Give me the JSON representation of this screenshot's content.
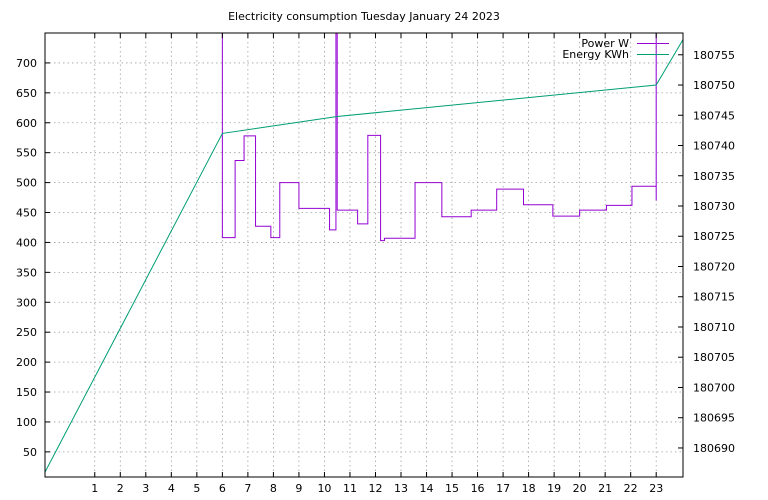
{
  "chart_data": {
    "type": "line",
    "title": "Electricity consumption Tuesday January 24 2023",
    "xlabel": "",
    "ylabel": "",
    "y2label": "",
    "xlim": [
      -0.95,
      24.05
    ],
    "ylim": [
      8,
      750
    ],
    "y2lim": [
      180685.2,
      180758.6
    ],
    "x_ticks": [
      1,
      2,
      3,
      4,
      5,
      6,
      7,
      8,
      9,
      10,
      11,
      12,
      13,
      14,
      15,
      16,
      17,
      18,
      19,
      20,
      21,
      22,
      23
    ],
    "y_ticks": [
      50,
      100,
      150,
      200,
      250,
      300,
      350,
      400,
      450,
      500,
      550,
      600,
      650,
      700
    ],
    "y2_ticks": [
      180690,
      180695,
      180700,
      180705,
      180710,
      180715,
      180720,
      180725,
      180730,
      180735,
      180740,
      180745,
      180750,
      180755
    ],
    "grid": true,
    "legend_position": "top-right",
    "series": [
      {
        "name": "Power W",
        "axis": "left",
        "color": "#9400d3",
        "style": "steps",
        "points": [
          [
            6.0,
            750
          ],
          [
            6.0,
            408
          ],
          [
            6.5,
            408
          ],
          [
            6.5,
            537
          ],
          [
            6.85,
            537
          ],
          [
            6.85,
            578
          ],
          [
            7.3,
            578
          ],
          [
            7.3,
            427
          ],
          [
            7.9,
            427
          ],
          [
            7.9,
            408
          ],
          [
            8.25,
            408
          ],
          [
            8.25,
            500
          ],
          [
            9.0,
            500
          ],
          [
            9.0,
            457
          ],
          [
            10.2,
            457
          ],
          [
            10.2,
            421
          ],
          [
            10.45,
            421
          ],
          [
            10.45,
            750
          ],
          [
            10.5,
            750
          ],
          [
            10.5,
            454
          ],
          [
            11.3,
            454
          ],
          [
            11.3,
            431
          ],
          [
            11.7,
            431
          ],
          [
            11.7,
            579
          ],
          [
            12.2,
            579
          ],
          [
            12.2,
            403
          ],
          [
            12.35,
            403
          ],
          [
            12.35,
            407
          ],
          [
            13.55,
            407
          ],
          [
            13.55,
            500
          ],
          [
            14.6,
            500
          ],
          [
            14.6,
            443
          ],
          [
            15.75,
            443
          ],
          [
            15.75,
            454
          ],
          [
            16.75,
            454
          ],
          [
            16.75,
            489
          ],
          [
            17.8,
            489
          ],
          [
            17.8,
            463
          ],
          [
            18.95,
            463
          ],
          [
            18.95,
            444
          ],
          [
            20.0,
            444
          ],
          [
            20.0,
            454
          ],
          [
            21.05,
            454
          ],
          [
            21.05,
            462
          ],
          [
            22.05,
            462
          ],
          [
            22.05,
            494
          ],
          [
            23.0,
            494
          ],
          [
            23.0,
            750
          ],
          [
            23.0,
            470
          ]
        ]
      },
      {
        "name": "Energy KWh",
        "axis": "right",
        "color": "#009e73",
        "style": "line",
        "points": [
          [
            -0.95,
            180686.0
          ],
          [
            6.0,
            180742.0
          ],
          [
            10.5,
            180744.8
          ],
          [
            23.0,
            180750.0
          ],
          [
            24.05,
            180757.5
          ]
        ]
      }
    ]
  }
}
